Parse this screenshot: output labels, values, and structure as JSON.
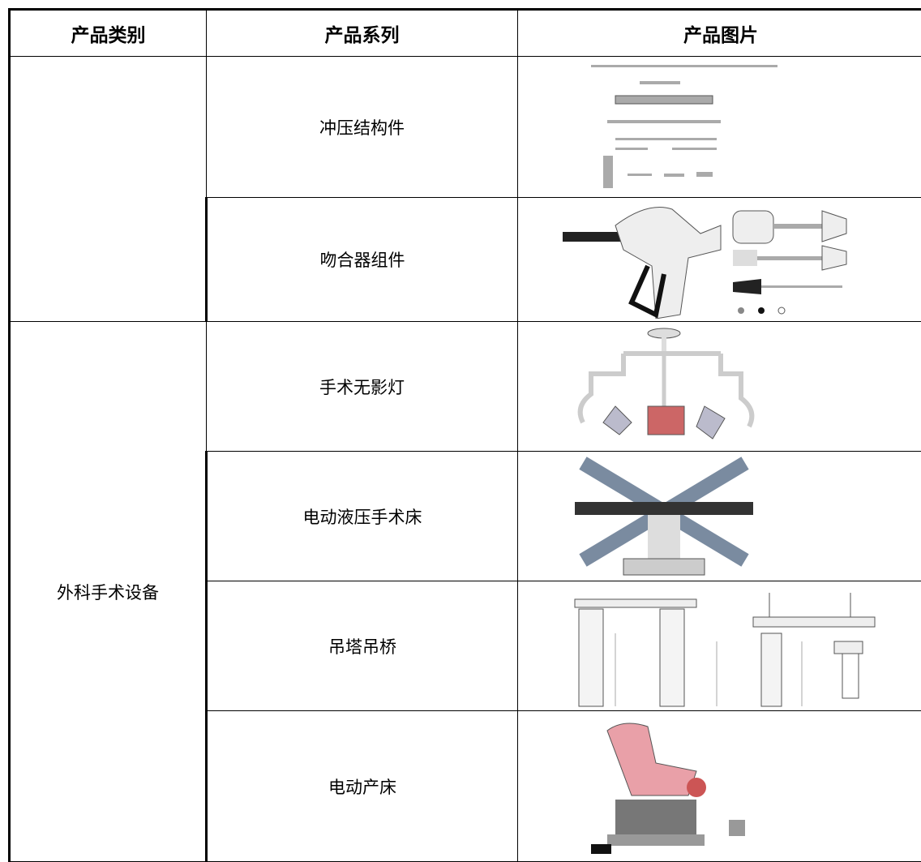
{
  "table": {
    "header": [
      "产品类别",
      "产品系列",
      "产品图片"
    ],
    "groups": [
      {
        "rows": [
          "冲压结构件",
          "吻合器组件"
        ]
      },
      {
        "category": "外科手术设备",
        "rows": [
          "手术无影灯",
          "电动液压手术床",
          "吊塔吊桥",
          "电动产床"
        ]
      }
    ]
  }
}
